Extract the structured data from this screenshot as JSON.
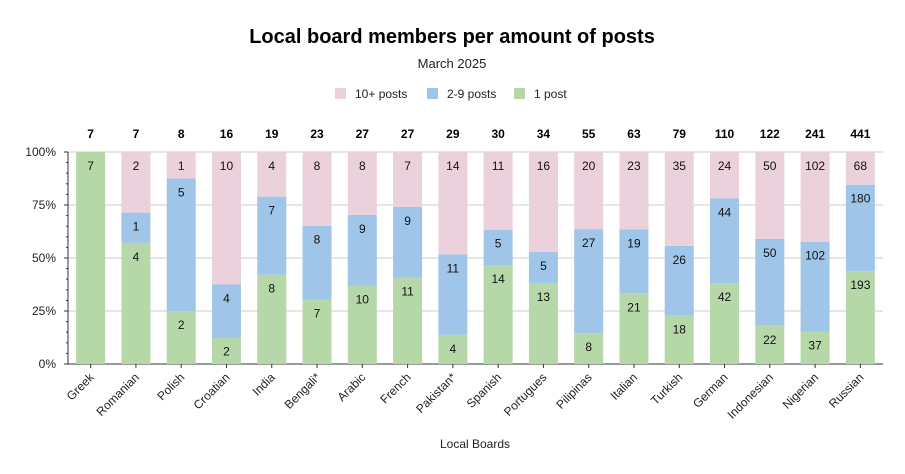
{
  "chart_data": {
    "type": "bar",
    "stacked": "percent",
    "title": "Local board members per amount of posts",
    "subtitle": "March 2025",
    "xlabel": "Local Boards",
    "ylabel": "",
    "ylim": [
      0,
      100
    ],
    "yticks": [
      "0%",
      "25%",
      "50%",
      "75%",
      "100%"
    ],
    "legend_position": "top",
    "grid": true,
    "categories": [
      "Greek",
      "Romanian",
      "Polish",
      "Croatian",
      "India",
      "Bengali*",
      "Arabic",
      "French",
      "Pakistan*",
      "Spanish",
      "Portugues",
      "Pilipinas",
      "Italian",
      "Turkish",
      "German",
      "Indonesian",
      "Nigerian",
      "Russian"
    ],
    "totals": [
      7,
      7,
      8,
      16,
      19,
      23,
      27,
      27,
      29,
      30,
      34,
      55,
      63,
      79,
      110,
      122,
      241,
      441
    ],
    "series": [
      {
        "name": "1 post",
        "color": "#b6d7a8",
        "values": [
          7,
          4,
          2,
          2,
          8,
          7,
          10,
          11,
          4,
          14,
          13,
          8,
          21,
          18,
          42,
          22,
          37,
          193
        ]
      },
      {
        "name": "2-9 posts",
        "color": "#9fc5e8",
        "values": [
          0,
          1,
          5,
          4,
          7,
          8,
          9,
          9,
          11,
          5,
          5,
          27,
          19,
          26,
          44,
          50,
          102,
          180
        ]
      },
      {
        "name": "10+ posts",
        "color": "#ead1dc",
        "values": [
          0,
          2,
          1,
          10,
          4,
          8,
          8,
          7,
          14,
          11,
          16,
          20,
          23,
          35,
          24,
          50,
          102,
          68
        ]
      }
    ],
    "legend_order": [
      "10+ posts",
      "2-9 posts",
      "1 post"
    ]
  }
}
